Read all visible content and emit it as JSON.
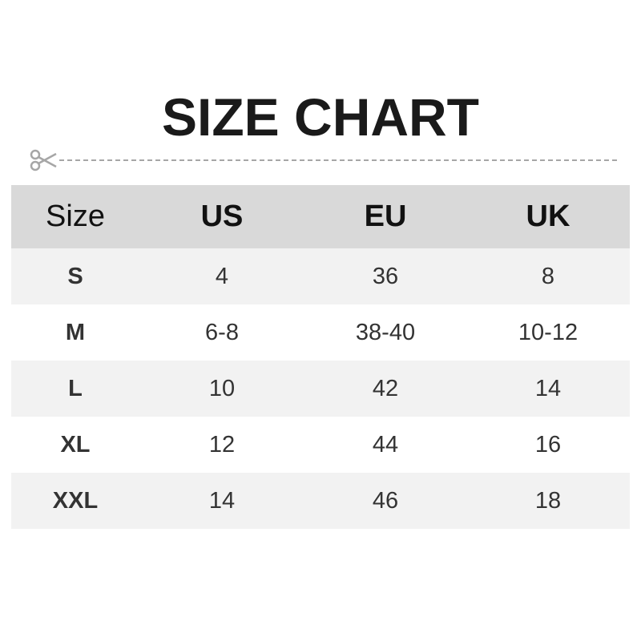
{
  "title": "SIZE CHART",
  "icons": {
    "cut": "scissors-icon"
  },
  "colors": {
    "header_bg": "#d9d9d9",
    "stripe_bg": "#f2f2f2",
    "dash": "#a6a6a6"
  },
  "table": {
    "headers": [
      "Size",
      "US",
      "EU",
      "UK"
    ],
    "rows": [
      [
        "S",
        "4",
        "36",
        "8"
      ],
      [
        "M",
        "6-8",
        "38-40",
        "10-12"
      ],
      [
        "L",
        "10",
        "42",
        "14"
      ],
      [
        "XL",
        "12",
        "44",
        "16"
      ],
      [
        "XXL",
        "14",
        "46",
        "18"
      ]
    ]
  }
}
